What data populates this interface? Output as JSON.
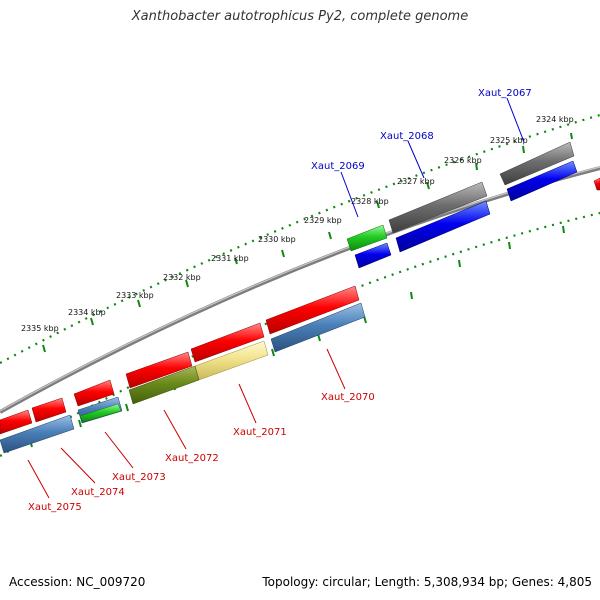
{
  "title": "Xanthobacter autotrophicus Py2, complete genome",
  "footer": {
    "accession": "Accession: NC_009720",
    "topology": "Topology: circular; Length: 5,308,934 bp; Genes: 4,805"
  },
  "colors": {
    "forward_gene_label": "#0000cc",
    "reverse_gene_label": "#cc0000",
    "backbone": "#888888",
    "ruler_ticks": "#118811"
  },
  "ruler": {
    "labels": [
      "2324 kbp",
      "2325 kbp",
      "2326 kbp",
      "2327 kbp",
      "2328 kbp",
      "2329 kbp",
      "2330 kbp",
      "2331 kbp",
      "2332 kbp",
      "2333 kbp",
      "2334 kbp",
      "2335 kbp"
    ]
  },
  "genes": {
    "forward": [
      "Xaut_2067",
      "Xaut_2068",
      "Xaut_2069"
    ],
    "reverse": [
      "Xaut_2070",
      "Xaut_2071",
      "Xaut_2072",
      "Xaut_2073",
      "Xaut_2074",
      "Xaut_2075"
    ]
  }
}
